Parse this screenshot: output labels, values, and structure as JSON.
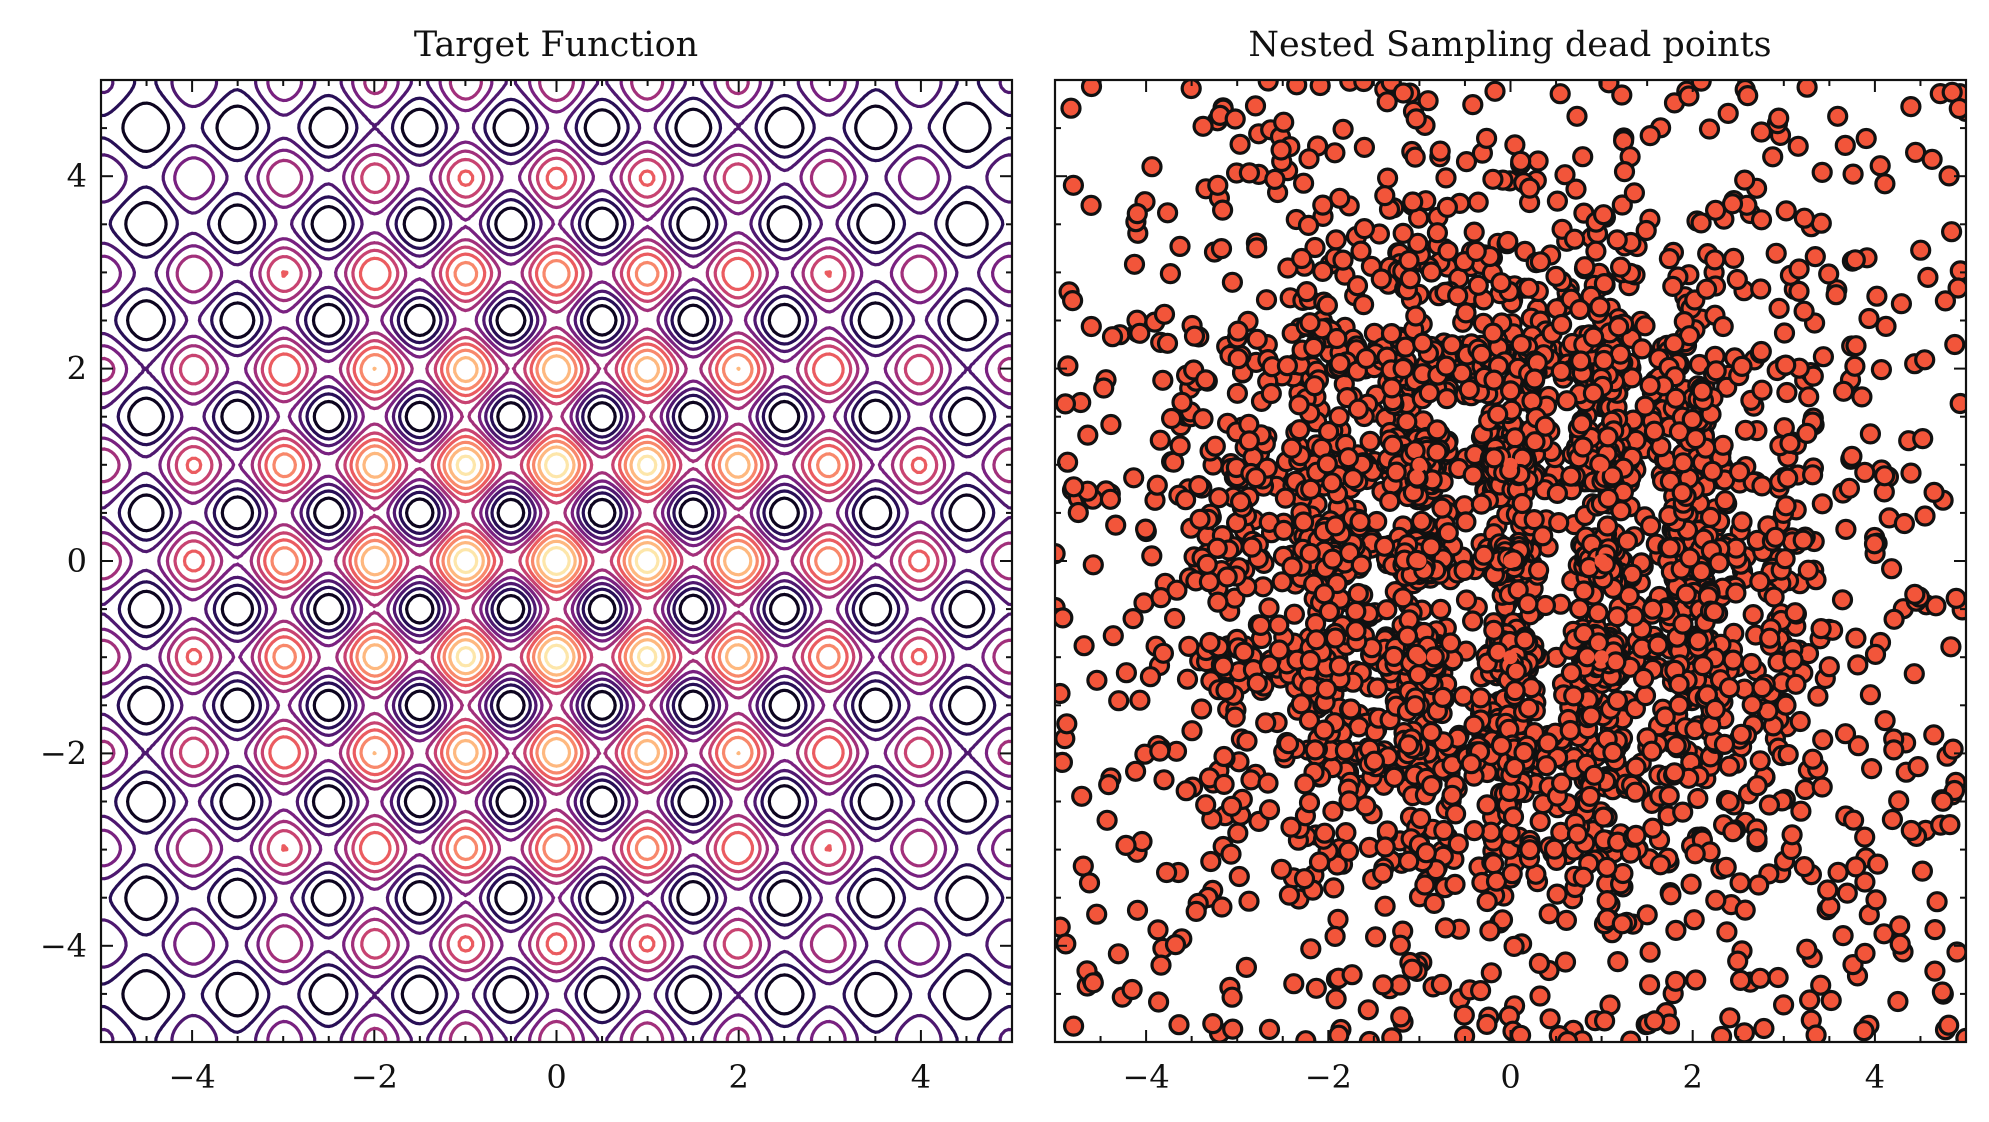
{
  "chart_data": [
    {
      "type": "contour",
      "title": "Target Function",
      "xlabel": "",
      "ylabel": "",
      "xlim": [
        -5,
        5
      ],
      "ylim": [
        -5,
        5
      ],
      "x_ticks": [
        -4,
        -2,
        0,
        2,
        4
      ],
      "y_ticks": [
        -4,
        -2,
        0,
        2,
        4
      ],
      "x_tick_labels": [
        "−4",
        "−2",
        "0",
        "2",
        "4"
      ],
      "y_tick_labels": [
        "−4",
        "−2",
        "0",
        "2",
        "4"
      ],
      "function": "exp(-(x^2+y^2)/40) * (2 + cos(2*pi*x) + cos(2*pi*y)) / 4 (estimated from the contour pattern)",
      "contour_levels": 10,
      "colormap": "magma",
      "colormap_stops": [
        "#000004",
        "#2c115f",
        "#721f81",
        "#b73779",
        "#f1605d",
        "#feb078",
        "#fcfdbf"
      ],
      "grid": false
    },
    {
      "type": "scatter",
      "title": "Nested Sampling dead points",
      "xlabel": "",
      "ylabel": "",
      "xlim": [
        -5,
        5
      ],
      "ylim": [
        -5,
        5
      ],
      "x_ticks": [
        -4,
        -2,
        0,
        2,
        4
      ],
      "x_tick_labels": [
        "−4",
        "−2",
        "0",
        "2",
        "4"
      ],
      "y_ticks": [
        -4,
        -2,
        0,
        2,
        4
      ],
      "y_tick_labels_shown": false,
      "marker_fill": "#f2553a",
      "marker_edge": "#111111",
      "approx_point_count": 3000,
      "densest_clusters": [
        {
          "x": -1,
          "y": 1
        },
        {
          "x": 0,
          "y": 1
        },
        {
          "x": 1,
          "y": 1
        },
        {
          "x": -1,
          "y": 0
        },
        {
          "x": 0,
          "y": 0
        },
        {
          "x": 1,
          "y": 0
        },
        {
          "x": -1,
          "y": -1
        },
        {
          "x": 0,
          "y": -1
        },
        {
          "x": 1,
          "y": -1
        }
      ],
      "grid": false
    }
  ]
}
